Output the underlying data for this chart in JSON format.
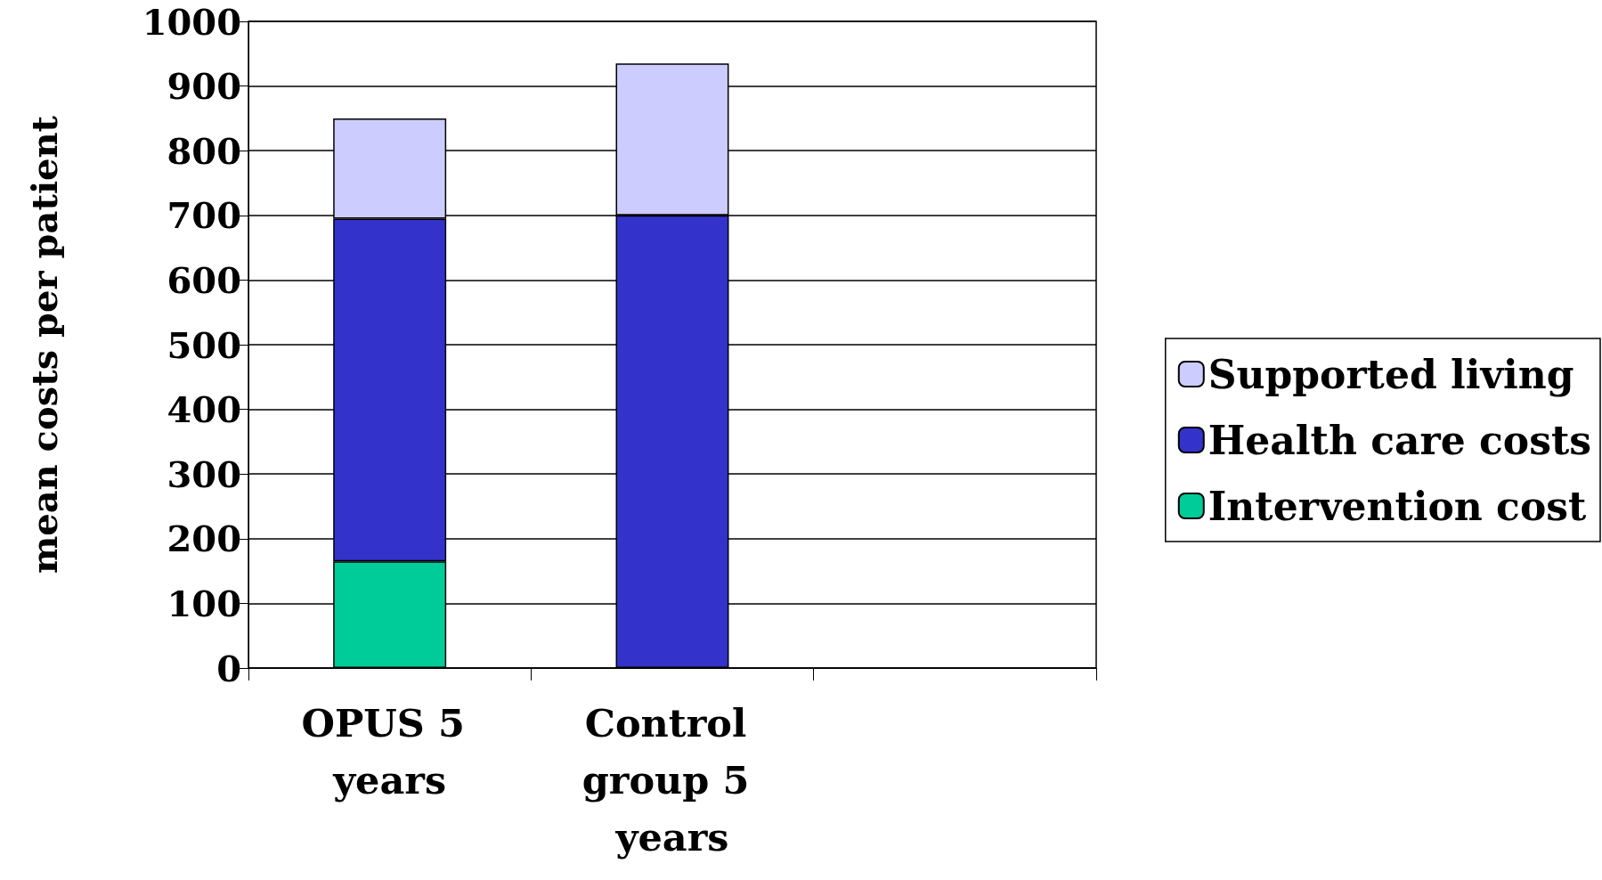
{
  "chart_data": {
    "type": "bar",
    "stacked": true,
    "ylabel": "mean costs per patient",
    "categories": [
      "OPUS 5 years",
      "Control group 5 years",
      null
    ],
    "series": [
      {
        "name": "Intervention cost",
        "color": "#00cc99",
        "values": [
          165,
          0,
          null
        ]
      },
      {
        "name": "Health care costs",
        "color": "#3333cc",
        "values": [
          530,
          700,
          null
        ]
      },
      {
        "name": "Supported living",
        "color": "#ccccff",
        "values": [
          155,
          235,
          null
        ]
      }
    ],
    "ylim": [
      0,
      1000
    ],
    "yticks": [
      0,
      100,
      200,
      300,
      400,
      500,
      600,
      700,
      800,
      900,
      1000
    ],
    "grid": "y",
    "legend": "right"
  }
}
